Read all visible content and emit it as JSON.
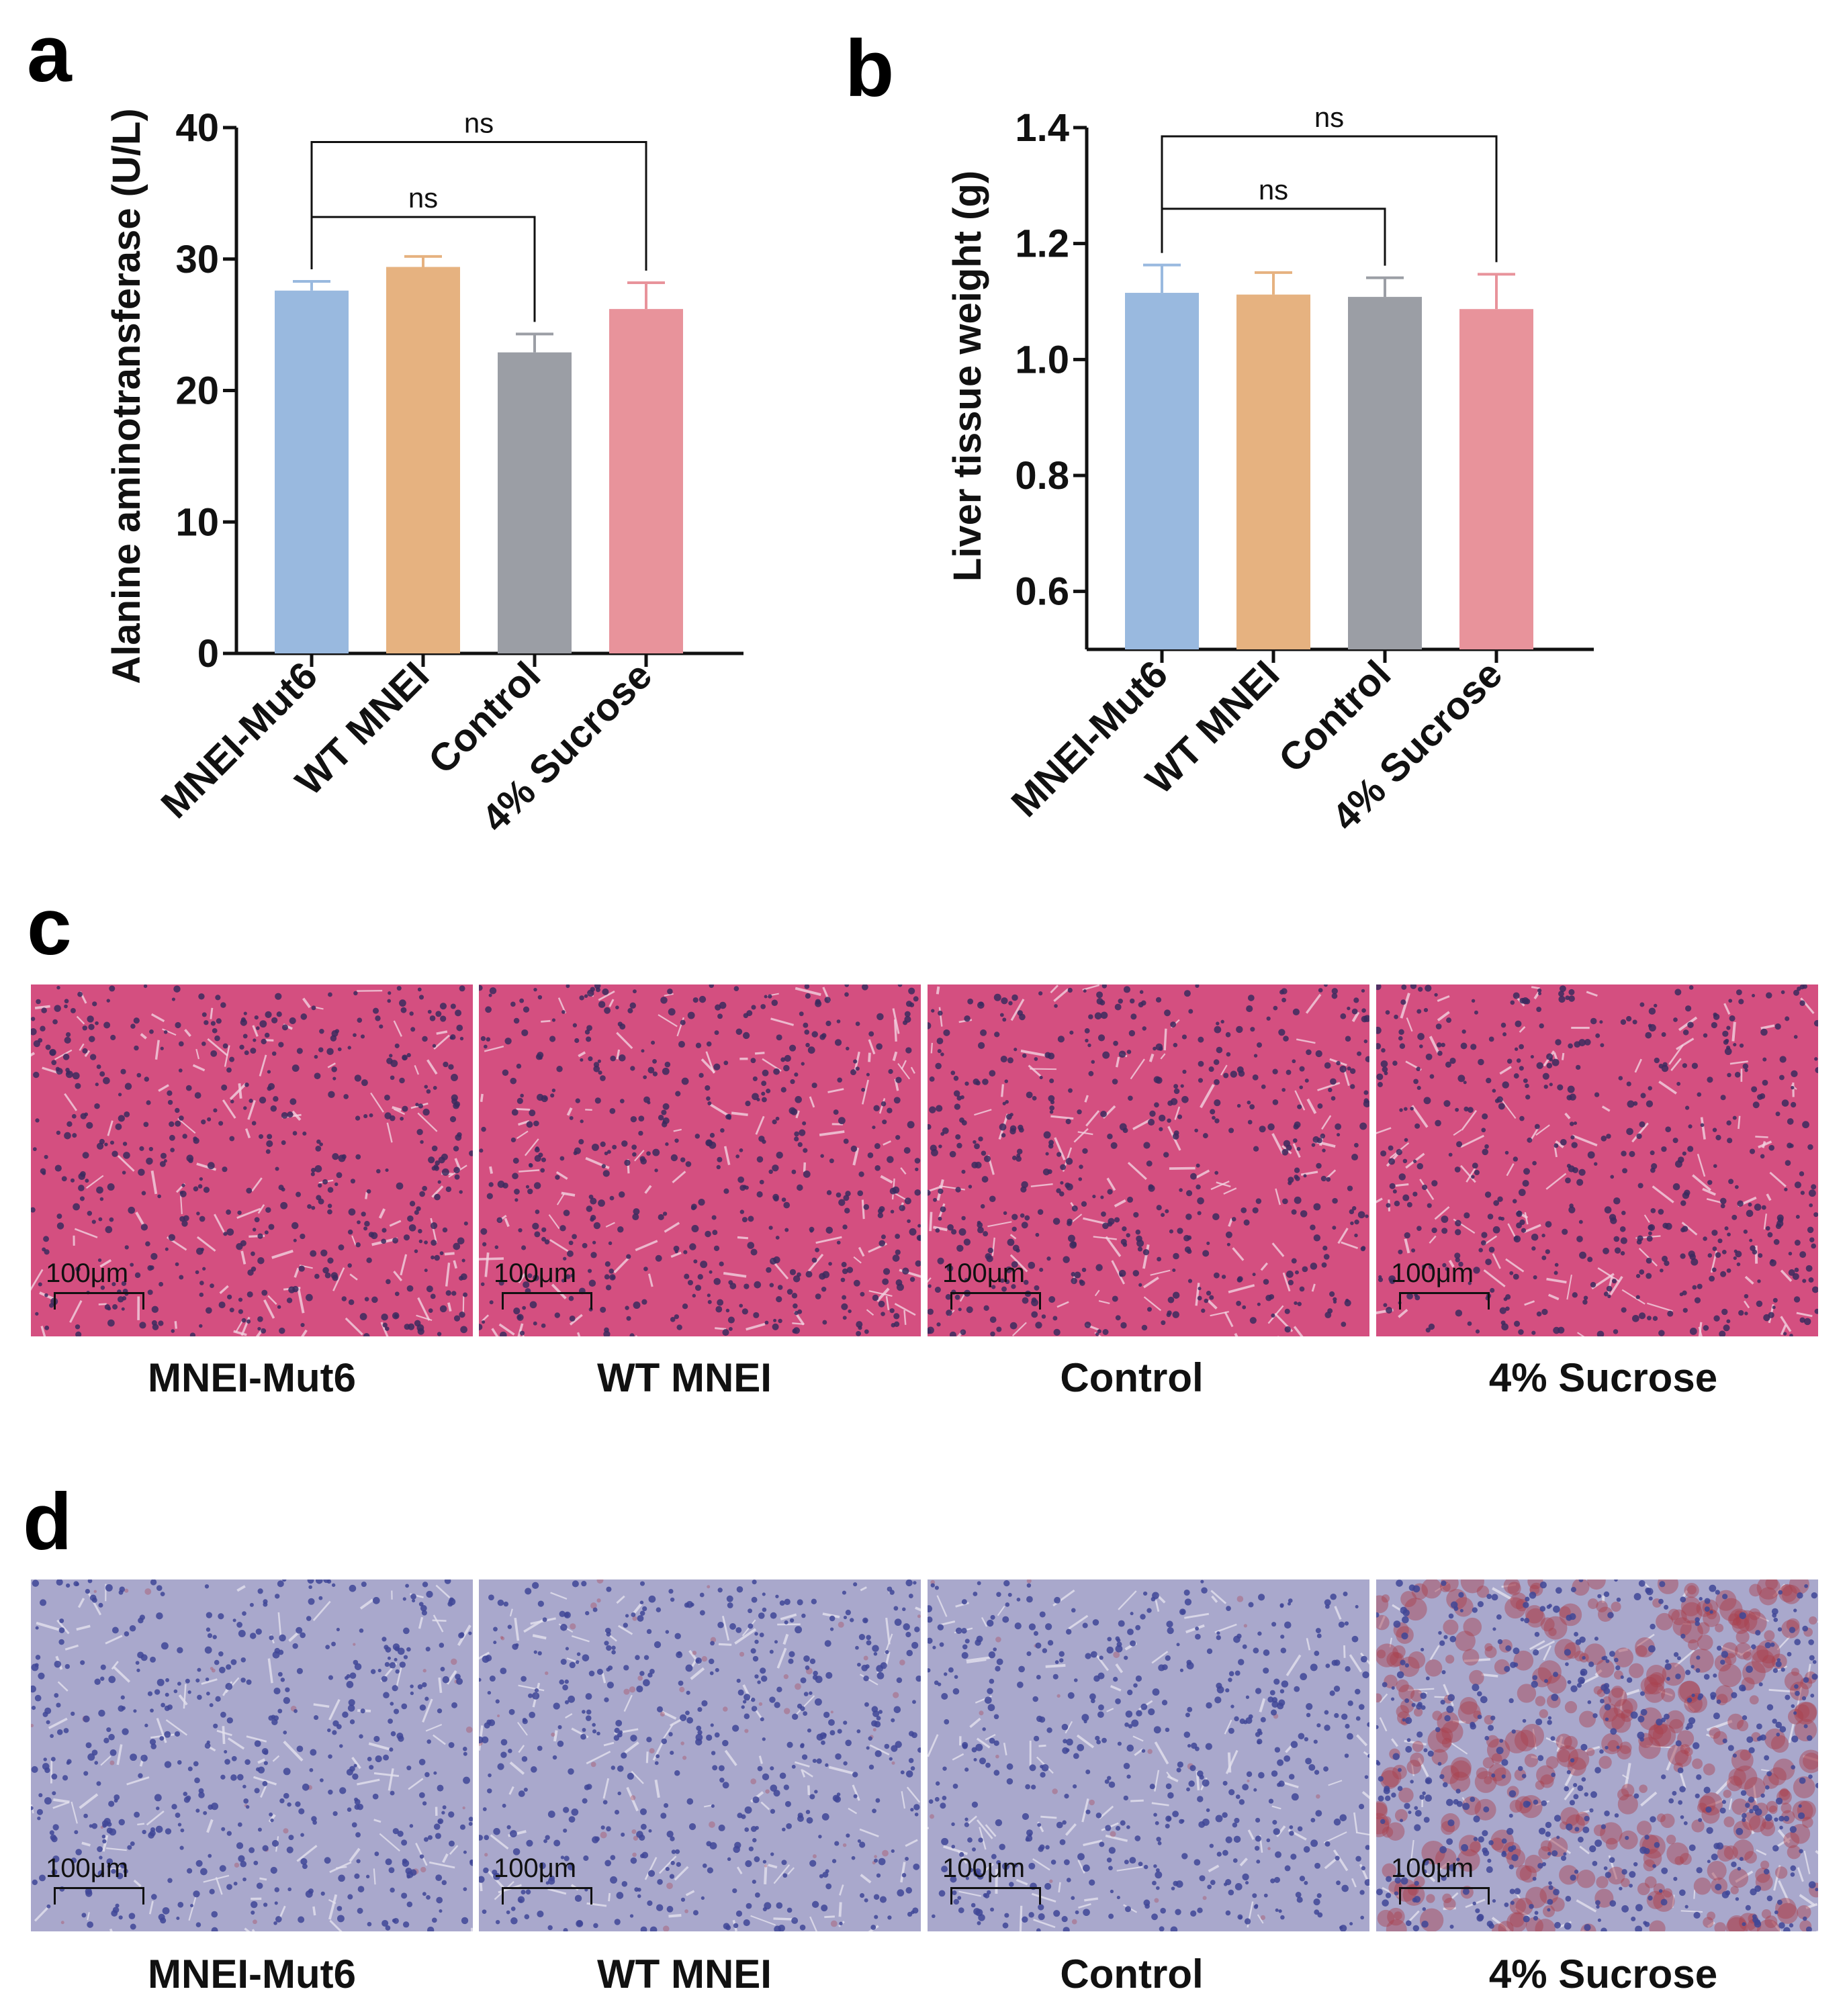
{
  "panels": {
    "a": "a",
    "b": "b",
    "c": "c",
    "d": "d"
  },
  "chart_data": [
    {
      "type": "bar",
      "categories": [
        "MNEI-Mut6",
        "WT MNEI",
        "Control",
        "4% Sucrose"
      ],
      "values": [
        27.6,
        29.4,
        22.9,
        26.2
      ],
      "error": [
        0.7,
        0.8,
        1.4,
        2.0
      ],
      "colors": [
        "#99b9df",
        "#e6b280",
        "#9b9ea5",
        "#e8939b"
      ],
      "ylabel": "Alanine aminotransferase (U/L)",
      "ylim": [
        0,
        40
      ],
      "yticks": [
        "0",
        "10",
        "20",
        "30",
        "40"
      ],
      "ytick_values": [
        0,
        10,
        20,
        30,
        40
      ],
      "grid": false,
      "brackets": [
        {
          "from": 0,
          "to": 3,
          "label": "ns",
          "level": 38.9
        },
        {
          "from": 0,
          "to": 2,
          "label": "ns",
          "level": 33.2
        }
      ]
    },
    {
      "type": "bar",
      "categories": [
        "MNEI-Mut6",
        "WT MNEI",
        "Control",
        "4% Sucrose"
      ],
      "values": [
        1.115,
        1.112,
        1.108,
        1.087
      ],
      "error": [
        0.048,
        0.038,
        0.033,
        0.06
      ],
      "colors": [
        "#99b9df",
        "#e6b280",
        "#9b9ea5",
        "#e8939b"
      ],
      "ylabel": "Liver tissue weight (g)",
      "ylim": [
        0.5,
        1.4
      ],
      "yticks": [
        "0.6",
        "0.8",
        "1.0",
        "1.2",
        "1.4"
      ],
      "ytick_values": [
        0.6,
        0.8,
        1.0,
        1.2,
        1.4
      ],
      "grid": false,
      "brackets": [
        {
          "from": 0,
          "to": 3,
          "label": "ns",
          "level": 1.385
        },
        {
          "from": 0,
          "to": 2,
          "label": "ns",
          "level": 1.26
        }
      ]
    }
  ],
  "micrographs": {
    "scalebar": "100μm",
    "he": {
      "labels": [
        "MNEI-Mut6",
        "WT MNEI",
        "Control",
        "4% Sucrose"
      ],
      "background": "#d44f80",
      "nucleus_color": "#3b2a5e",
      "stain_color": "#f3d3e1"
    },
    "oil_red_o": {
      "labels": [
        "MNEI-Mut6",
        "WT MNEI",
        "Control",
        "4% Sucrose"
      ],
      "background": "#a9a8cc",
      "nucleus_color": "#3f4696",
      "lipid_color": "#a8404e"
    }
  }
}
